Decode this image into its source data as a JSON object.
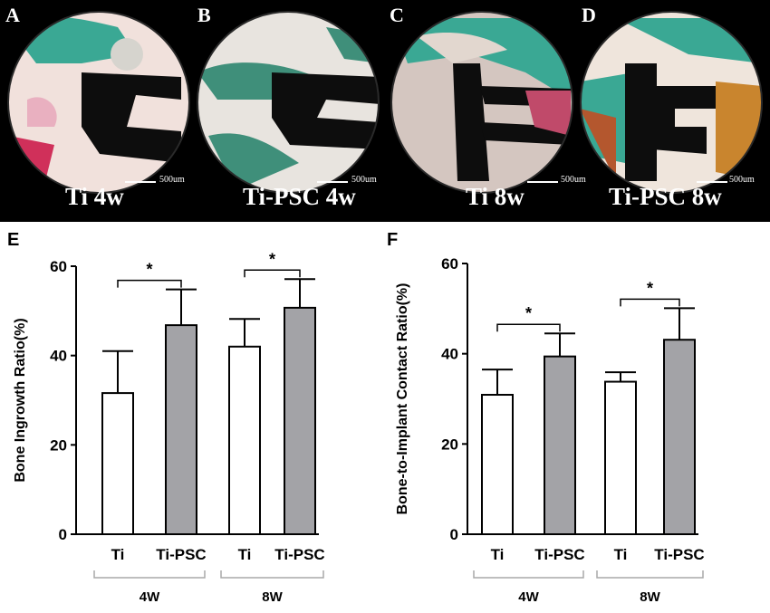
{
  "micrographs": [
    {
      "letter": "A",
      "caption": "Ti 4w",
      "scale": "500um"
    },
    {
      "letter": "B",
      "caption": "Ti-PSC 4w",
      "scale": "500um"
    },
    {
      "letter": "C",
      "caption": "Ti 8w",
      "scale": "500um"
    },
    {
      "letter": "D",
      "caption": "Ti-PSC 8w",
      "scale": "500um"
    }
  ],
  "colors": {
    "ti_bar": "#ffffff",
    "ti_psc_bar": "#a3a3a7",
    "bracket": "#a9a9a9",
    "tissue_bone": "#3aa894",
    "tissue_soft": "#f1e1dc",
    "implant": "#0d0d0d"
  },
  "chart_data": [
    {
      "panel": "E",
      "type": "bar",
      "ylabel": "Bone Ingrowth Ratio(%)",
      "ylim": [
        0,
        60
      ],
      "yticks": [
        0,
        20,
        40,
        60
      ],
      "categories": [
        "Ti",
        "Ti-PSC",
        "Ti",
        "Ti-PSC"
      ],
      "groups": [
        "4W",
        "8W"
      ],
      "values": [
        31.6,
        46.8,
        42.0,
        50.7
      ],
      "errors": [
        9.4,
        8.0,
        6.2,
        6.4
      ],
      "significance": [
        "*",
        "*"
      ]
    },
    {
      "panel": "F",
      "type": "bar",
      "ylabel": "Bone-to-Implant Contact Ratio(%)",
      "ylim": [
        0,
        60
      ],
      "yticks": [
        0,
        20,
        40,
        60
      ],
      "categories": [
        "Ti",
        "Ti-PSC",
        "Ti",
        "Ti-PSC"
      ],
      "groups": [
        "4W",
        "8W"
      ],
      "values": [
        30.9,
        39.4,
        33.8,
        43.1
      ],
      "errors": [
        5.6,
        5.1,
        2.1,
        7.0
      ],
      "significance": [
        "*",
        "*"
      ]
    }
  ]
}
